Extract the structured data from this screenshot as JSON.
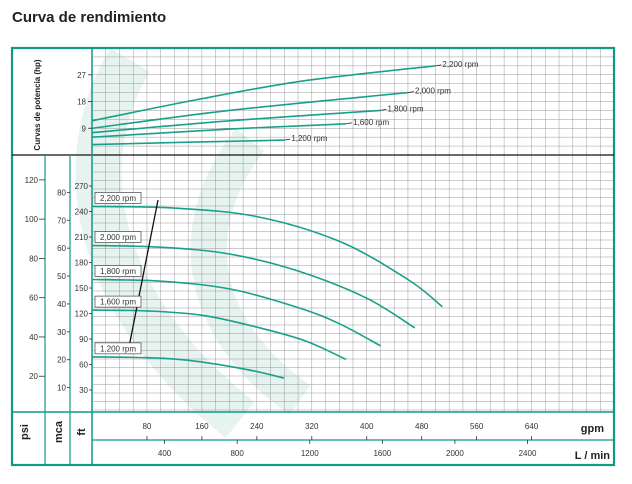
{
  "chart_data": {
    "type": "line",
    "title": "Curva de rendimiento",
    "colors": {
      "curve": "#19a08a",
      "frame": "#119a84",
      "grid": "#9a9a9a",
      "bg_swirl": "#e6f3ee"
    },
    "x_gpm": {
      "label": "gpm",
      "ticks": [
        80,
        160,
        240,
        320,
        400,
        480,
        560,
        640
      ],
      "range": [
        0,
        760
      ]
    },
    "x_lmin": {
      "label": "L / min",
      "ticks": [
        400,
        800,
        1200,
        1600,
        2000,
        2400
      ]
    },
    "power": {
      "ylabel": "Curvas de potencia (hp)",
      "ticks": [
        9,
        18,
        27
      ],
      "ylim": [
        0,
        36
      ],
      "series": [
        {
          "name": "1,200 rpm",
          "x": [
            0,
            140,
            280
          ],
          "y": [
            3.5,
            4.3,
            5
          ]
        },
        {
          "name": "1,600 rpm",
          "x": [
            0,
            200,
            370
          ],
          "y": [
            6,
            8.7,
            10.5
          ]
        },
        {
          "name": "1,800 rpm",
          "x": [
            0,
            200,
            420
          ],
          "y": [
            7.5,
            11.5,
            15
          ]
        },
        {
          "name": "2,000 rpm",
          "x": [
            0,
            200,
            460
          ],
          "y": [
            9,
            15,
            21
          ]
        },
        {
          "name": "2,200 rpm",
          "x": [
            0,
            150,
            310,
            500
          ],
          "y": [
            11.5,
            18.5,
            25,
            30
          ]
        }
      ]
    },
    "head": {
      "ft_ticks": [
        30,
        60,
        90,
        120,
        150,
        180,
        210,
        240,
        270
      ],
      "mca_ticks": [
        10,
        20,
        30,
        40,
        50,
        60,
        70,
        80
      ],
      "psi_ticks": [
        20,
        40,
        60,
        80,
        100,
        120
      ],
      "units": {
        "psi": "psi",
        "mca": "mca",
        "ft": "ft"
      },
      "series": [
        {
          "name": "1,200 rpm",
          "x": [
            0,
            80,
            140,
            220,
            280
          ],
          "y": [
            69,
            68,
            65,
            55,
            44
          ]
        },
        {
          "name": "1,600 rpm",
          "x": [
            0,
            80,
            160,
            240,
            310,
            370
          ],
          "y": [
            124,
            123,
            118,
            104,
            88,
            66
          ]
        },
        {
          "name": "1,800 rpm",
          "x": [
            0,
            100,
            200,
            300,
            360,
            420
          ],
          "y": [
            160,
            158,
            149,
            127,
            108,
            82
          ]
        },
        {
          "name": "2,000 rpm",
          "x": [
            0,
            100,
            200,
            300,
            400,
            470
          ],
          "y": [
            200,
            198,
            190,
            170,
            138,
            103
          ]
        },
        {
          "name": "2,200 rpm",
          "x": [
            0,
            120,
            240,
            360,
            460,
            510
          ],
          "y": [
            246,
            244,
            234,
            205,
            160,
            128
          ]
        }
      ]
    }
  }
}
